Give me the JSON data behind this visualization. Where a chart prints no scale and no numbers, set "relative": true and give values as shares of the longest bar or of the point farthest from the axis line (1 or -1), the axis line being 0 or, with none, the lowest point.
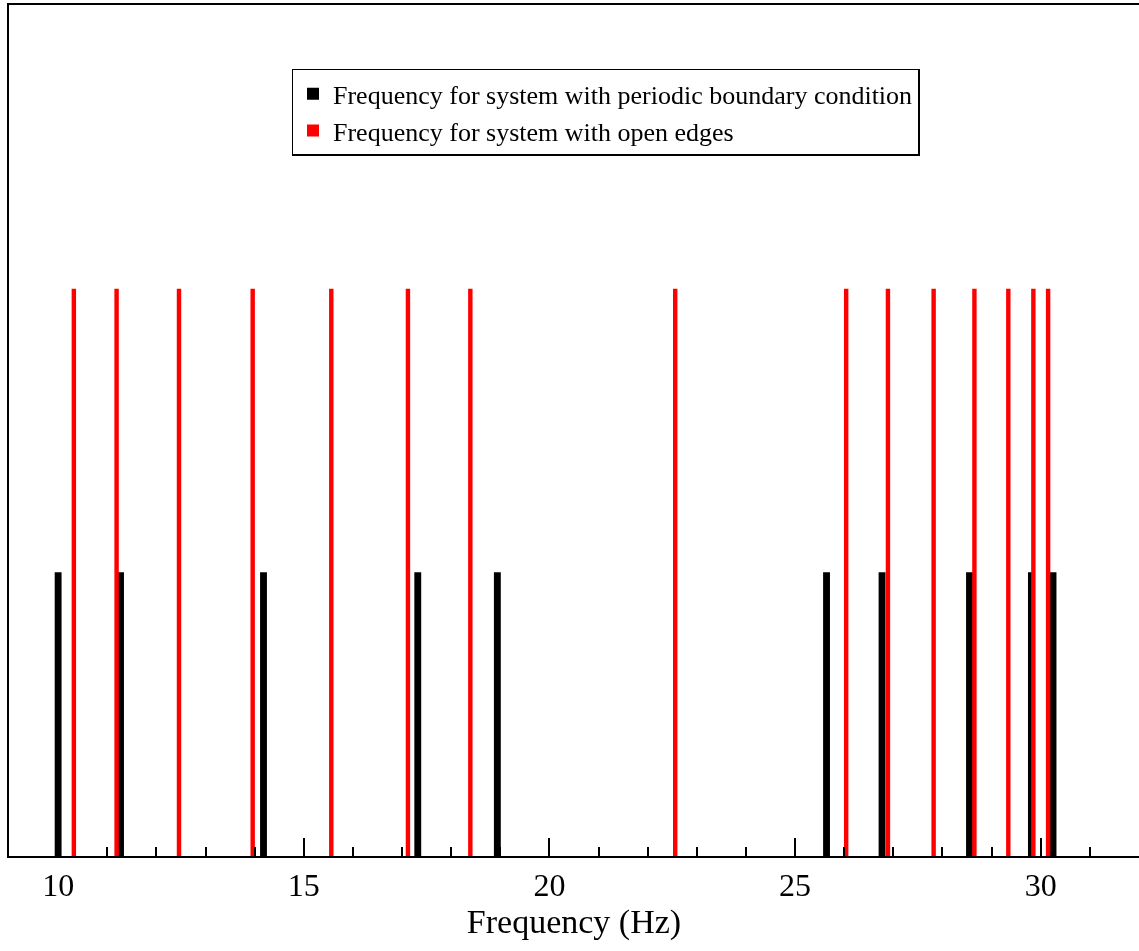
{
  "chart_data": {
    "type": "bar",
    "xlabel": "Frequency (Hz)",
    "relative": true,
    "xlim": [
      9,
      32
    ],
    "xticks": [
      10,
      15,
      20,
      25,
      30
    ],
    "legend": "top right",
    "grid": false,
    "series": [
      {
        "name": "Frequency for system with periodic boundary condition",
        "color": "#000000",
        "x": [
          10.0,
          11.27,
          14.18,
          17.32,
          18.94,
          25.64,
          26.77,
          28.55,
          29.81,
          30.25
        ],
        "values": [
          0.5,
          0.5,
          0.5,
          0.5,
          0.5,
          0.5,
          0.5,
          0.5,
          0.5,
          0.5
        ]
      },
      {
        "name": "Frequency for system with open edges",
        "color": "#ff0000",
        "x": [
          10.32,
          11.19,
          12.46,
          13.96,
          15.56,
          17.12,
          18.39,
          22.56,
          26.04,
          26.89,
          27.82,
          28.65,
          29.34,
          29.85,
          30.15
        ],
        "values": [
          1,
          1,
          1,
          1,
          1,
          1,
          1,
          1,
          1,
          1,
          1,
          1,
          1,
          1,
          1
        ]
      }
    ]
  }
}
